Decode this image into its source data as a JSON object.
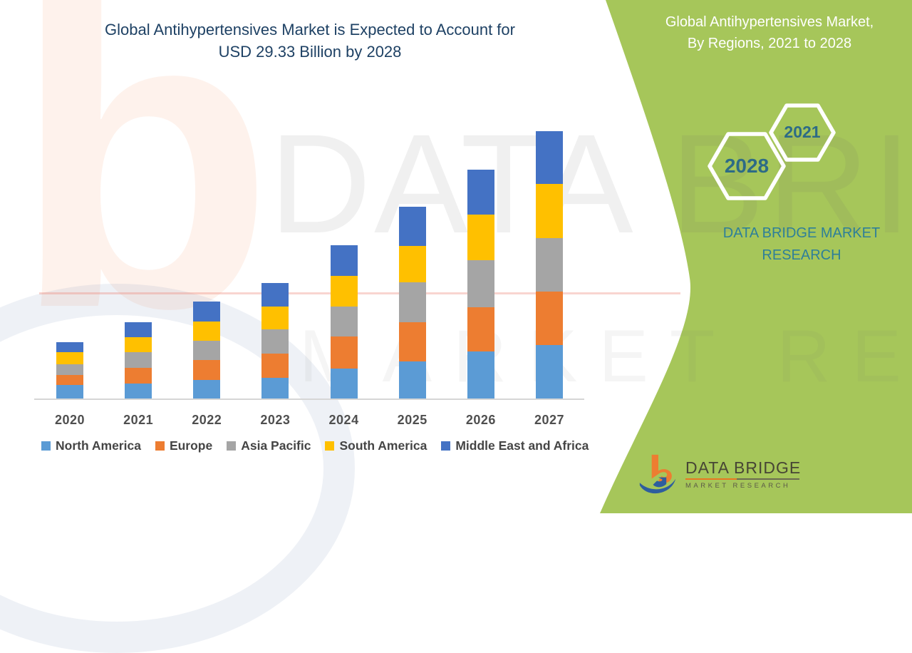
{
  "header": {
    "title_line1": "Global Antihypertensives Market is Expected to Account for",
    "title_line2": "USD 29.33 Billion by 2028"
  },
  "side_panel": {
    "bg": "#a6c65a",
    "title_line1": "Global Antihypertensives Market,",
    "title_line2": "By Regions, 2021 to 2028",
    "hexagons": {
      "small_hex_year": "2021",
      "large_hex_year": "2028"
    },
    "caption_line1": "DATA BRIDGE MARKET",
    "caption_line2": "RESEARCH"
  },
  "watermark": {
    "text_main": "DATA BRIDGE",
    "text_sub": "MARKET RESEARCH",
    "letter_b": "b"
  },
  "footer_logo": {
    "name": "DATA BRIDGE",
    "sub": "MARKET  RESEARCH"
  },
  "chart_data": {
    "type": "bar",
    "stacked": true,
    "title": "Global Antihypertensives Market is Expected to Account for USD 29.33 Billion by 2028",
    "xlabel": "",
    "ylabel": "",
    "value_units": "relative height (y-axis unlabeled in source image)",
    "grid": false,
    "legend_position": "bottom",
    "categories": [
      "2020",
      "2021",
      "2022",
      "2023",
      "2024",
      "2025",
      "2026",
      "2027"
    ],
    "series": [
      {
        "name": "North America",
        "color": "#5B9BD5",
        "values": [
          20,
          22,
          27,
          30,
          43,
          53,
          67,
          76
        ]
      },
      {
        "name": "Europe",
        "color": "#ED7D31",
        "values": [
          14,
          22,
          28,
          34,
          45,
          55,
          62,
          75
        ]
      },
      {
        "name": "Asia Pacific",
        "color": "#A5A5A5",
        "values": [
          15,
          22,
          27,
          34,
          42,
          56,
          66,
          75
        ]
      },
      {
        "name": "South America",
        "color": "#FFC000",
        "values": [
          17,
          21,
          27,
          32,
          43,
          51,
          64,
          76
        ]
      },
      {
        "name": "Middle East and Africa",
        "color": "#4472C4",
        "values": [
          14,
          21,
          28,
          33,
          43,
          55,
          63,
          74
        ]
      }
    ],
    "totals": [
      80,
      108,
      137,
      163,
      216,
      270,
      322,
      376
    ]
  }
}
